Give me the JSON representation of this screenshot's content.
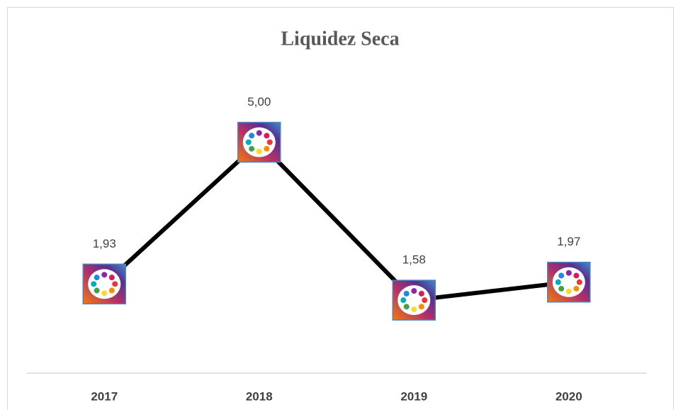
{
  "chart_data": {
    "type": "line",
    "title": "Liquidez Seca",
    "categories": [
      "2017",
      "2018",
      "2019",
      "2020"
    ],
    "values": [
      1.93,
      5.0,
      1.58,
      1.97
    ],
    "value_labels": [
      "1,93",
      "5,00",
      "1,58",
      "1,97"
    ],
    "color": "#000000"
  }
}
